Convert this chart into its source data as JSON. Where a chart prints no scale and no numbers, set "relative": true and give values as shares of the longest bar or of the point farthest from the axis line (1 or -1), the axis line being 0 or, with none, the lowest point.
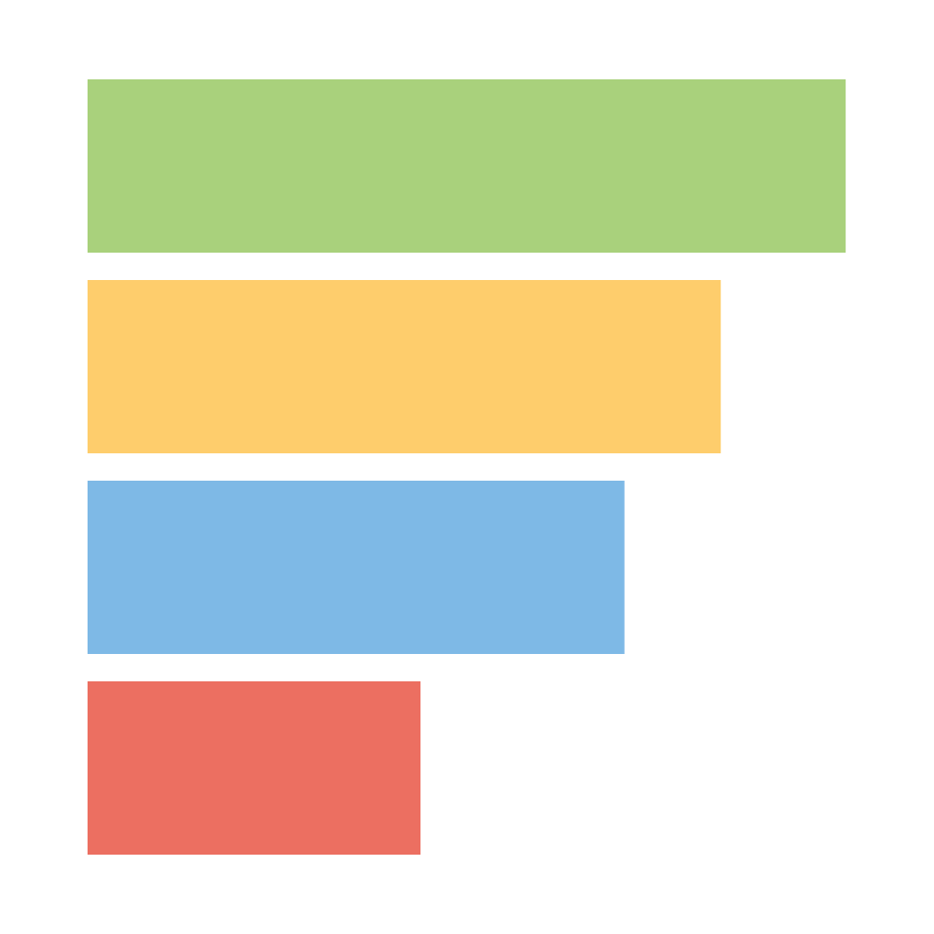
{
  "chart_data": {
    "type": "bar",
    "orientation": "horizontal",
    "relative": true,
    "categories": [
      null,
      null,
      null,
      null
    ],
    "values": [
      1,
      0.835,
      0.708,
      0.439
    ],
    "colors": [
      "#a9d17c",
      "#fecd6c",
      "#7eb9e6",
      "#ec6f61"
    ]
  }
}
